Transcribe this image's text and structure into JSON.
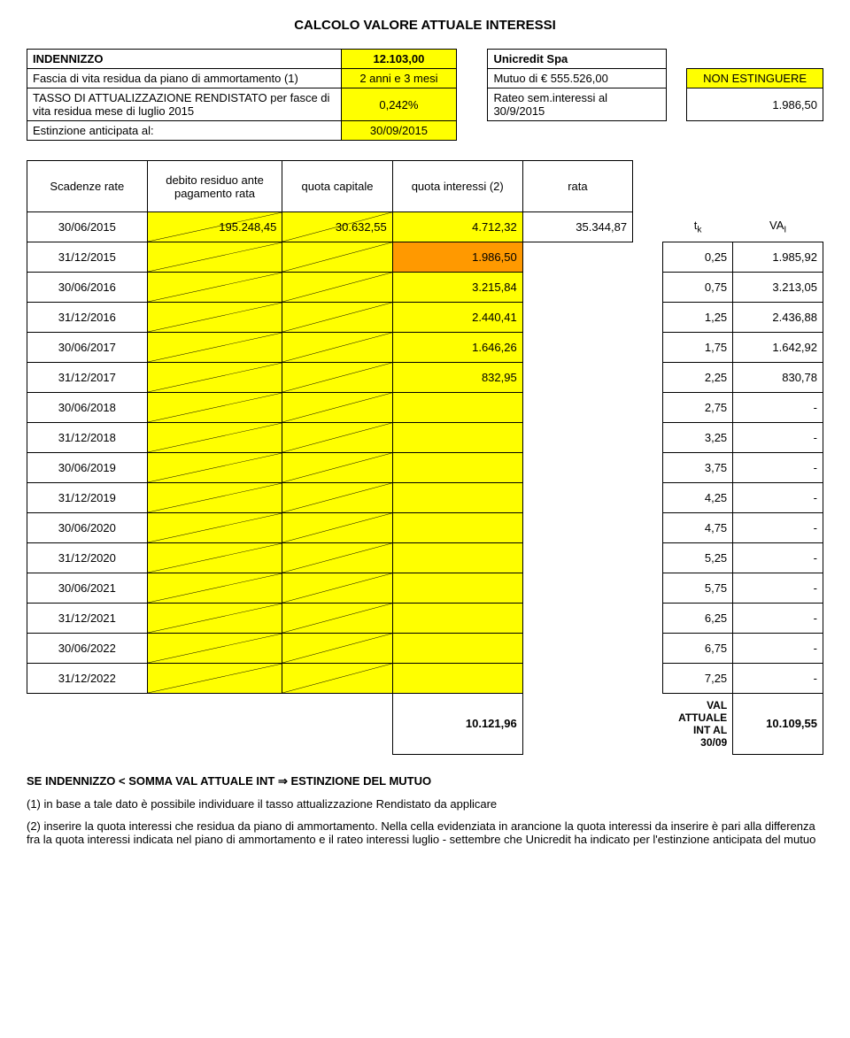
{
  "title": "CALCOLO VALORE ATTUALE INTERESSI",
  "header": {
    "r1c1": "INDENNIZZO",
    "r1c2": "12.103,00",
    "r1c3": "Unicredit Spa",
    "r2c1": "Fascia di vita residua da piano di ammortamento (1)",
    "r2c2": "2 anni e 3 mesi",
    "r2c3a": "Mutuo di € 555.526,00",
    "r2c4": "NON ESTINGUERE",
    "r3c1": "TASSO DI ATTUALIZZAZIONE RENDISTATO per fasce di vita residua mese di luglio  2015",
    "r3c2": "0,242%",
    "r3c3a": "Rateo sem.interessi al 30/9/2015",
    "r3c4": "1.986,50",
    "r4c1": "Estinzione anticipata al:",
    "r4c2": "30/09/2015"
  },
  "cols": {
    "c1": "Scadenze rate",
    "c2": "debito residuo ante pagamento rata",
    "c3": "quota capitale",
    "c4": "quota interessi (2)",
    "c5": "rata",
    "tk_label": "t",
    "tk_sub": "k",
    "va_label": "VA",
    "va_sub": "I"
  },
  "rows": [
    {
      "date": "30/06/2015",
      "debito": "195.248,45",
      "capitale": "30.632,55",
      "interessi": "4.712,32",
      "rata": "35.344,87",
      "tk": "",
      "va": ""
    },
    {
      "date": "31/12/2015",
      "debito": "",
      "capitale": "",
      "interessi": "1.986,50",
      "rata": "",
      "tk": "0,25",
      "va": "1.985,92",
      "orange": true
    },
    {
      "date": "30/06/2016",
      "debito": "",
      "capitale": "",
      "interessi": "3.215,84",
      "rata": "",
      "tk": "0,75",
      "va": "3.213,05"
    },
    {
      "date": "31/12/2016",
      "debito": "",
      "capitale": "",
      "interessi": "2.440,41",
      "rata": "",
      "tk": "1,25",
      "va": "2.436,88"
    },
    {
      "date": "30/06/2017",
      "debito": "",
      "capitale": "",
      "interessi": "1.646,26",
      "rata": "",
      "tk": "1,75",
      "va": "1.642,92"
    },
    {
      "date": "31/12/2017",
      "debito": "",
      "capitale": "",
      "interessi": "832,95",
      "rata": "",
      "tk": "2,25",
      "va": "830,78"
    },
    {
      "date": "30/06/2018",
      "debito": "",
      "capitale": "",
      "interessi": "",
      "rata": "",
      "tk": "2,75",
      "va": "-"
    },
    {
      "date": "31/12/2018",
      "debito": "",
      "capitale": "",
      "interessi": "",
      "rata": "",
      "tk": "3,25",
      "va": "-"
    },
    {
      "date": "30/06/2019",
      "debito": "",
      "capitale": "",
      "interessi": "",
      "rata": "",
      "tk": "3,75",
      "va": "-"
    },
    {
      "date": "31/12/2019",
      "debito": "",
      "capitale": "",
      "interessi": "",
      "rata": "",
      "tk": "4,25",
      "va": "-"
    },
    {
      "date": "30/06/2020",
      "debito": "",
      "capitale": "",
      "interessi": "",
      "rata": "",
      "tk": "4,75",
      "va": "-"
    },
    {
      "date": "31/12/2020",
      "debito": "",
      "capitale": "",
      "interessi": "",
      "rata": "",
      "tk": "5,25",
      "va": "-"
    },
    {
      "date": "30/06/2021",
      "debito": "",
      "capitale": "",
      "interessi": "",
      "rata": "",
      "tk": "5,75",
      "va": "-"
    },
    {
      "date": "31/12/2021",
      "debito": "",
      "capitale": "",
      "interessi": "",
      "rata": "",
      "tk": "6,25",
      "va": "-"
    },
    {
      "date": "30/06/2022",
      "debito": "",
      "capitale": "",
      "interessi": "",
      "rata": "",
      "tk": "6,75",
      "va": "-"
    },
    {
      "date": "31/12/2022",
      "debito": "",
      "capitale": "",
      "interessi": "",
      "rata": "",
      "tk": "7,25",
      "va": "-"
    }
  ],
  "total": {
    "sum_int": "10.121,96",
    "label": "VAL ATTUALE INT AL 30/09",
    "val": "10.109,55"
  },
  "footer": {
    "line1": "SE INDENNIZZO < SOMMA VAL ATTUALE INT ⇒ ESTINZIONE DEL MUTUO",
    "line2": "(1) in base a tale dato è possibile individuare il tasso attualizzazione Rendistato da applicare",
    "line3": "(2) inserire la quota interessi che residua da piano di ammortamento. Nella cella evidenziata in arancione la quota interessi da inserire è pari alla differenza fra la quota interessi indicata nel piano di ammortamento e il rateo interessi luglio - settembre che Unicredit ha indicato per l'estinzione anticipata del mutuo"
  },
  "colors": {
    "yellow": "#ffff00",
    "orange": "#ff9900"
  }
}
